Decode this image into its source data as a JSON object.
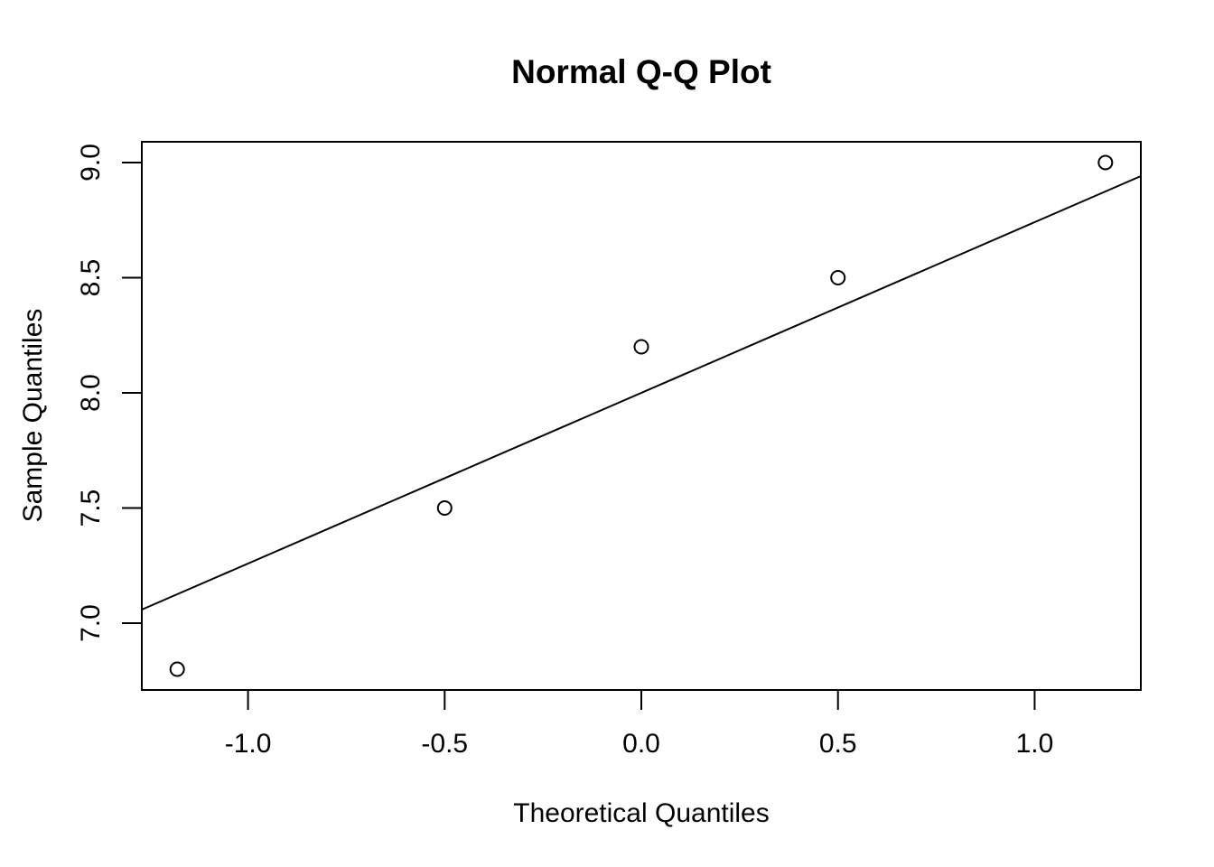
{
  "chart_data": {
    "type": "scatter",
    "title": "Normal Q-Q Plot",
    "xlabel": "Theoretical Quantiles",
    "ylabel": "Sample Quantiles",
    "xlim": [
      -1.27,
      1.27
    ],
    "ylim": [
      6.71,
      9.09
    ],
    "x_ticks": [
      -1.0,
      -0.5,
      0.0,
      0.5,
      1.0
    ],
    "x_tick_labels": [
      "-1.0",
      "-0.5",
      "0.0",
      "0.5",
      "1.0"
    ],
    "y_ticks": [
      7.0,
      7.5,
      8.0,
      8.5,
      9.0
    ],
    "y_tick_labels": [
      "7.0",
      "7.5",
      "8.0",
      "8.5",
      "9.0"
    ],
    "grid": false,
    "legend": "none",
    "points": {
      "x": [
        -1.18,
        -0.5,
        0.0,
        0.5,
        1.18
      ],
      "y": [
        6.8,
        7.5,
        8.2,
        8.5,
        9.0
      ]
    },
    "reference_line": {
      "intercept": 8.0,
      "slope": 0.741
    },
    "colors": {
      "ink": "#000000",
      "background": "#ffffff"
    }
  }
}
